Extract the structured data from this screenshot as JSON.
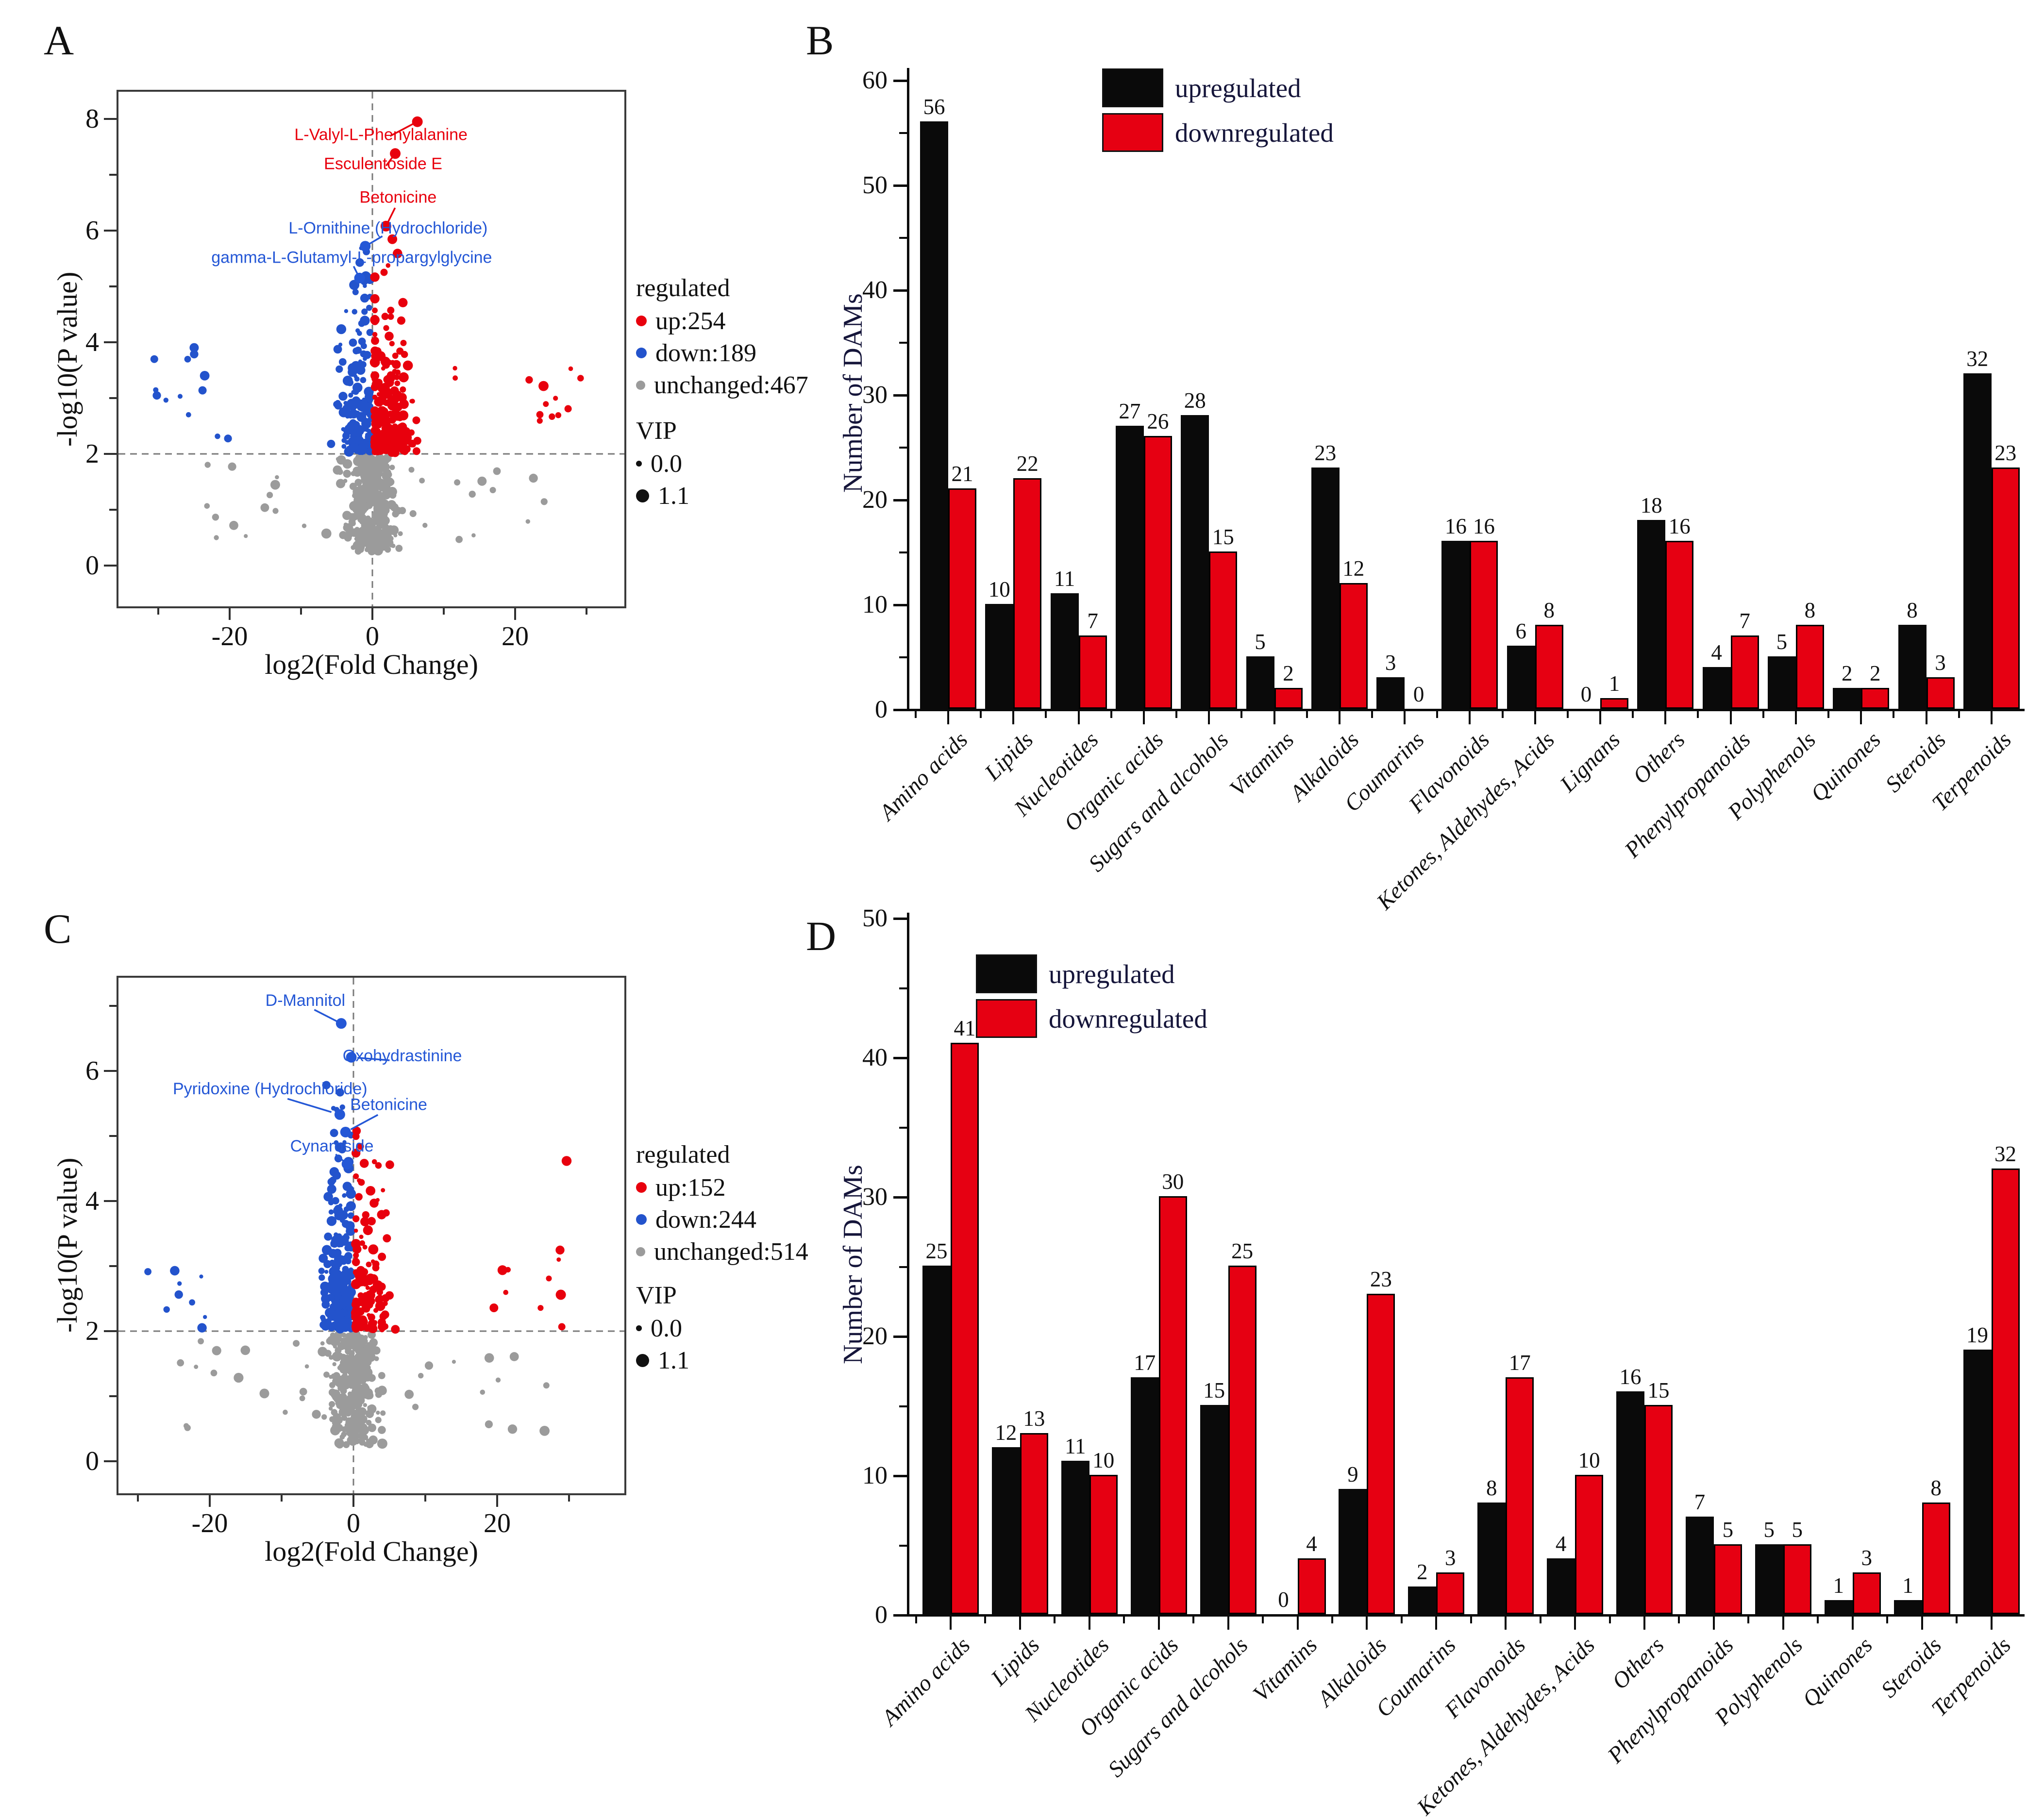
{
  "colors": {
    "up": "#e8000d",
    "down": "#2353cc",
    "unchanged": "#9b9b9b",
    "bar_up": "#0a0a0a",
    "bar_down": "#e60012",
    "axis": "#2f2f2f",
    "dashed": "#7a7a7a",
    "annotation_red": "#e8000d",
    "annotation_blue": "#2457d6",
    "text": "#111111"
  },
  "chart_data": [
    {
      "panel": "A",
      "type": "scatter",
      "subtype": "volcano",
      "xlabel": "log2(Fold Change)",
      "ylabel": "-log10(P value)",
      "xlim": [
        -36,
        36
      ],
      "ylim": [
        -0.8,
        8.5
      ],
      "x_ticks": [
        -20,
        0,
        20
      ],
      "x_minor_ticks": [
        -30,
        -10,
        10,
        30
      ],
      "y_ticks": [
        0,
        2,
        4,
        6,
        8
      ],
      "y_minor_ticks": [
        1,
        3,
        5,
        7
      ],
      "hline_y": 2,
      "vline_x": 0,
      "counts": {
        "up": 254,
        "down": 189,
        "unchanged": 467
      },
      "legend": {
        "title": "regulated",
        "up": "up:254",
        "down": "down:189",
        "unchanged": "unchanged:467",
        "vip_title": "VIP",
        "vip_small": "0.0",
        "vip_large": "1.1"
      },
      "annotations": [
        {
          "text": "L-Valyl-L-Phenylalanine",
          "color": "red",
          "point": [
            6.3,
            7.95
          ],
          "label": [
            1.2,
            7.62
          ]
        },
        {
          "text": "Esculentoside E",
          "color": "red",
          "point": [
            3.2,
            7.38
          ],
          "label": [
            1.5,
            7.1
          ]
        },
        {
          "text": "Betonicine",
          "color": "red",
          "point": [
            1.9,
            6.08
          ],
          "label": [
            3.6,
            6.5
          ]
        },
        {
          "text": "L-Ornithine (Hydrochloride)",
          "color": "blue",
          "point": [
            -1.0,
            5.72
          ],
          "label": [
            2.2,
            5.95
          ]
        },
        {
          "text": "gamma-L-Glutamyl-L-propargylglycine",
          "color": "blue",
          "point": [
            -1.8,
            5.15
          ],
          "label": [
            -2.9,
            5.42
          ]
        }
      ],
      "seed": 42,
      "point_clusters": [
        {
          "series": "up",
          "n": 215,
          "x": {
            "dist": "normal",
            "mu": 2.0,
            "sigma": 1.5,
            "min": 0.35,
            "max": 9
          },
          "y": {
            "dist": "shifted-exp",
            "base": 2.02,
            "mean": 1.0,
            "max": 6.05
          }
        },
        {
          "series": "up",
          "n": 11,
          "x": {
            "dist": "uniform",
            "min": 19,
            "max": 30
          },
          "y": {
            "dist": "uniform",
            "min": 2.05,
            "max": 3.6
          }
        },
        {
          "series": "up",
          "n": 2,
          "x": {
            "dist": "uniform",
            "min": 11,
            "max": 13
          },
          "y": {
            "dist": "uniform",
            "min": 3.3,
            "max": 3.6
          }
        },
        {
          "series": "down",
          "n": 168,
          "x": {
            "dist": "normal",
            "mu": -1.9,
            "sigma": 1.4,
            "min": -8,
            "max": -0.35
          },
          "y": {
            "dist": "shifted-exp",
            "base": 2.02,
            "mean": 1.1,
            "max": 6.35
          }
        },
        {
          "series": "down",
          "n": 13,
          "x": {
            "dist": "uniform",
            "min": -31,
            "max": -20
          },
          "y": {
            "dist": "uniform",
            "min": 2.2,
            "max": 3.95
          }
        },
        {
          "series": "unchanged",
          "n": 300,
          "x": {
            "dist": "normal",
            "mu": 0,
            "sigma": 1.7,
            "min": -6.5,
            "max": 6.5
          },
          "y": {
            "dist": "uniform",
            "min": 0.25,
            "max": 1.95
          }
        },
        {
          "series": "unchanged",
          "n": 36,
          "x": {
            "dist": "uniform",
            "min": -26,
            "max": 26
          },
          "y": {
            "dist": "uniform",
            "min": 0.45,
            "max": 1.9
          }
        }
      ]
    },
    {
      "panel": "B",
      "type": "bar",
      "ylabel": "Number of DAMs",
      "ylim": [
        0,
        60
      ],
      "y_ticks": [
        0,
        10,
        20,
        30,
        40,
        50,
        60
      ],
      "y_minor_ticks": [
        5,
        15,
        25,
        35,
        45,
        55
      ],
      "legend": {
        "up": "upregulated",
        "down": "downregulated"
      },
      "categories": [
        "Amino acids",
        "Lipids",
        "Nucleotides",
        "Organic acids",
        "Sugars and alcohols",
        "Vitamins",
        "Alkaloids",
        "Coumarins",
        "Flavonoids",
        "Ketones, Aldehydes, Acids",
        "Lignans",
        "Others",
        "Phenylpropanoids",
        "Polyphenols",
        "Quinones",
        "Steroids",
        "Terpenoids"
      ],
      "series": [
        {
          "name": "upregulated",
          "colorKey": "bar_up",
          "values": [
            56,
            10,
            11,
            27,
            28,
            5,
            23,
            3,
            16,
            6,
            0,
            18,
            4,
            5,
            2,
            8,
            32
          ]
        },
        {
          "name": "downregulated",
          "colorKey": "bar_down",
          "values": [
            21,
            22,
            7,
            26,
            15,
            2,
            12,
            0,
            16,
            8,
            1,
            16,
            7,
            8,
            2,
            3,
            23
          ]
        }
      ]
    },
    {
      "panel": "C",
      "type": "scatter",
      "subtype": "volcano",
      "xlabel": "log2(Fold Change)",
      "ylabel": "-log10(P value)",
      "xlim": [
        -33,
        38
      ],
      "ylim": [
        -0.5,
        7.4
      ],
      "x_ticks": [
        -20,
        0,
        20
      ],
      "x_minor_ticks": [
        -30,
        -10,
        10,
        30
      ],
      "y_ticks": [
        0,
        2,
        4,
        6
      ],
      "y_minor_ticks": [
        1,
        3,
        5,
        7
      ],
      "hline_y": 2,
      "vline_x": 0,
      "counts": {
        "up": 152,
        "down": 244,
        "unchanged": 514
      },
      "legend": {
        "title": "regulated",
        "up": "up:152",
        "down": "down:244",
        "unchanged": "unchanged:514",
        "vip_title": "VIP",
        "vip_small": "0.0",
        "vip_large": "1.1"
      },
      "annotations": [
        {
          "text": "D-Mannitol",
          "color": "blue",
          "point": [
            -1.7,
            6.73
          ],
          "label": [
            -6.7,
            7.0
          ]
        },
        {
          "text": "Oxohydrastinine",
          "color": "blue",
          "point": [
            -0.3,
            6.21
          ],
          "label": [
            6.8,
            6.15
          ]
        },
        {
          "text": "Pyridoxine (Hydrochloride)",
          "color": "blue",
          "point": [
            -1.9,
            5.33
          ],
          "label": [
            -11.6,
            5.64
          ]
        },
        {
          "text": "Betonicine",
          "color": "blue",
          "point": [
            -1.1,
            5.06
          ],
          "label": [
            4.9,
            5.4
          ]
        },
        {
          "text": "Cynaroside",
          "color": "blue",
          "point": [
            -0.9,
            4.57
          ],
          "label": [
            -3.0,
            4.76
          ]
        }
      ],
      "seed": 77,
      "point_clusters": [
        {
          "series": "up",
          "n": 132,
          "x": {
            "dist": "normal",
            "mu": 1.9,
            "sigma": 1.4,
            "min": 0.35,
            "max": 8
          },
          "y": {
            "dist": "shifted-exp",
            "base": 2.02,
            "mean": 0.95,
            "max": 5.6
          }
        },
        {
          "series": "up",
          "n": 10,
          "x": {
            "dist": "uniform",
            "min": 19,
            "max": 30
          },
          "y": {
            "dist": "uniform",
            "min": 2.05,
            "max": 3.4
          }
        },
        {
          "series": "up",
          "n": 1,
          "x": {
            "dist": "uniform",
            "min": 29,
            "max": 30
          },
          "y": {
            "dist": "uniform",
            "min": 4.55,
            "max": 4.7
          }
        },
        {
          "series": "down",
          "n": 220,
          "x": {
            "dist": "normal",
            "mu": -1.7,
            "sigma": 1.2,
            "min": -7.5,
            "max": -0.35
          },
          "y": {
            "dist": "shifted-exp",
            "base": 2.02,
            "mean": 1.0,
            "max": 6.3
          }
        },
        {
          "series": "down",
          "n": 9,
          "x": {
            "dist": "uniform",
            "min": -29,
            "max": -19
          },
          "y": {
            "dist": "uniform",
            "min": 2.05,
            "max": 3.1
          }
        },
        {
          "series": "unchanged",
          "n": 330,
          "x": {
            "dist": "normal",
            "mu": 0,
            "sigma": 1.6,
            "min": -6,
            "max": 6
          },
          "y": {
            "dist": "uniform",
            "min": 0.25,
            "max": 1.95
          }
        },
        {
          "series": "unchanged",
          "n": 34,
          "x": {
            "dist": "uniform",
            "min": -25,
            "max": 27
          },
          "y": {
            "dist": "uniform",
            "min": 0.4,
            "max": 1.9
          }
        }
      ]
    },
    {
      "panel": "D",
      "type": "bar",
      "ylabel": "Number of DAMs",
      "ylim": [
        0,
        50
      ],
      "y_ticks": [
        0,
        10,
        20,
        30,
        40,
        50
      ],
      "y_minor_ticks": [
        5,
        15,
        25,
        35,
        45
      ],
      "legend": {
        "up": "upregulated",
        "down": "downregulated"
      },
      "categories": [
        "Amino acids",
        "Lipids",
        "Nucleotides",
        "Organic acids",
        "Sugars and alcohols",
        "Vitamins",
        "Alkaloids",
        "Coumarins",
        "Flavonoids",
        "Ketones, Aldehydes, Acids",
        "Others",
        "Phenylpropanoids",
        "Polyphenols",
        "Quinones",
        "Steroids",
        "Terpenoids"
      ],
      "series": [
        {
          "name": "upregulated",
          "colorKey": "bar_up",
          "values": [
            25,
            12,
            11,
            17,
            15,
            0,
            9,
            2,
            8,
            4,
            16,
            7,
            5,
            1,
            1,
            19
          ]
        },
        {
          "name": "downregulated",
          "colorKey": "bar_down",
          "values": [
            41,
            13,
            10,
            30,
            25,
            4,
            23,
            3,
            17,
            10,
            15,
            5,
            5,
            3,
            8,
            32
          ]
        }
      ]
    }
  ]
}
